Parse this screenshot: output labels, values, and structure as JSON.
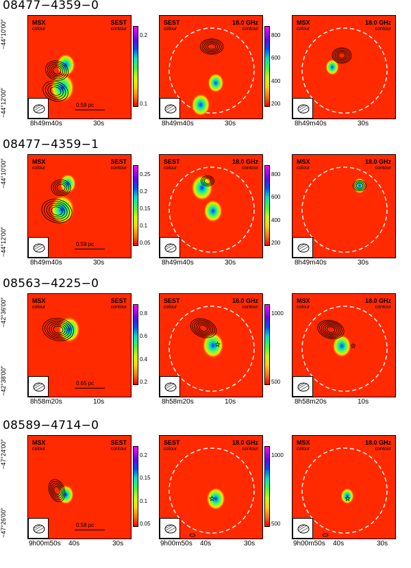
{
  "rows": [
    {
      "title": "08477−4359−0",
      "yticks": [
        "−44°10′00″",
        "−44°12′00″"
      ],
      "xticks": [
        "8h49m40s",
        "30s"
      ],
      "p1": {
        "left": "MSX",
        "left_sub": "colour",
        "right": "SEST",
        "right_sub": "contour",
        "cbar": [
          "0.2",
          "0.1"
        ],
        "scale": "0.59 pc"
      },
      "p2": {
        "left": "SEST",
        "left_sub": "colour",
        "right": "18.0 GHz",
        "right_sub": "contour",
        "cbar": [
          "800",
          "600",
          "400",
          "200"
        ]
      },
      "p3": {
        "left": "MSX",
        "left_sub": "colour",
        "right": "18.0 GHz",
        "right_sub": "contour"
      }
    },
    {
      "title": "08477−4359−1",
      "yticks": [
        "−44°10′00″",
        "−44°12′00″"
      ],
      "xticks": [
        "8h49m40s",
        "30s"
      ],
      "p1": {
        "left": "MSX",
        "left_sub": "colour",
        "right": "SEST",
        "right_sub": "contour",
        "cbar": [
          "0.25",
          "0.2",
          "0.15",
          "0.1",
          "0.05"
        ],
        "scale": "0.59 pc"
      },
      "p2": {
        "left": "SEST",
        "left_sub": "colour",
        "right": "18.0 GHz",
        "right_sub": "contour",
        "cbar": [
          "800",
          "600",
          "400",
          "200"
        ]
      },
      "p3": {
        "left": "MSX",
        "left_sub": "colour",
        "right": "18.0 GHz",
        "right_sub": "contour"
      }
    },
    {
      "title": "08563−4225−0",
      "yticks": [
        "−42°36′00″",
        "−42°38′00″"
      ],
      "xticks": [
        "8h58m20s",
        "10s"
      ],
      "p1": {
        "left": "MSX",
        "left_sub": "colour",
        "right": "SEST",
        "right_sub": "contour",
        "cbar": [
          "0.8",
          "0.6",
          "0.4",
          "0.2"
        ],
        "scale": "0.65 pc"
      },
      "p2": {
        "left": "SEST",
        "left_sub": "colour",
        "right": "18.0 GHz",
        "right_sub": "contour",
        "cbar": [
          "1000",
          "500"
        ]
      },
      "p3": {
        "left": "MSX",
        "left_sub": "colour",
        "right": "18.0 GHz",
        "right_sub": "contour"
      }
    },
    {
      "title": "08589−4714−0",
      "yticks": [
        "−47°24′00″",
        "−47°26′00″"
      ],
      "xticks": [
        "9h00m50s",
        "40s",
        "30s"
      ],
      "p1": {
        "left": "MSX",
        "left_sub": "colour",
        "right": "SEST",
        "right_sub": "contour",
        "cbar": [
          "0.2",
          "0.15",
          "0.1",
          "0.05"
        ],
        "scale": "0.58 pc"
      },
      "p2": {
        "left": "SEST",
        "left_sub": "colour",
        "right": "18.0 GHz",
        "right_sub": "contour",
        "cbar": [
          "1000",
          "500"
        ]
      },
      "p3": {
        "left": "MSX",
        "left_sub": "colour",
        "right": "18.0 GHz",
        "right_sub": "contour"
      }
    }
  ]
}
